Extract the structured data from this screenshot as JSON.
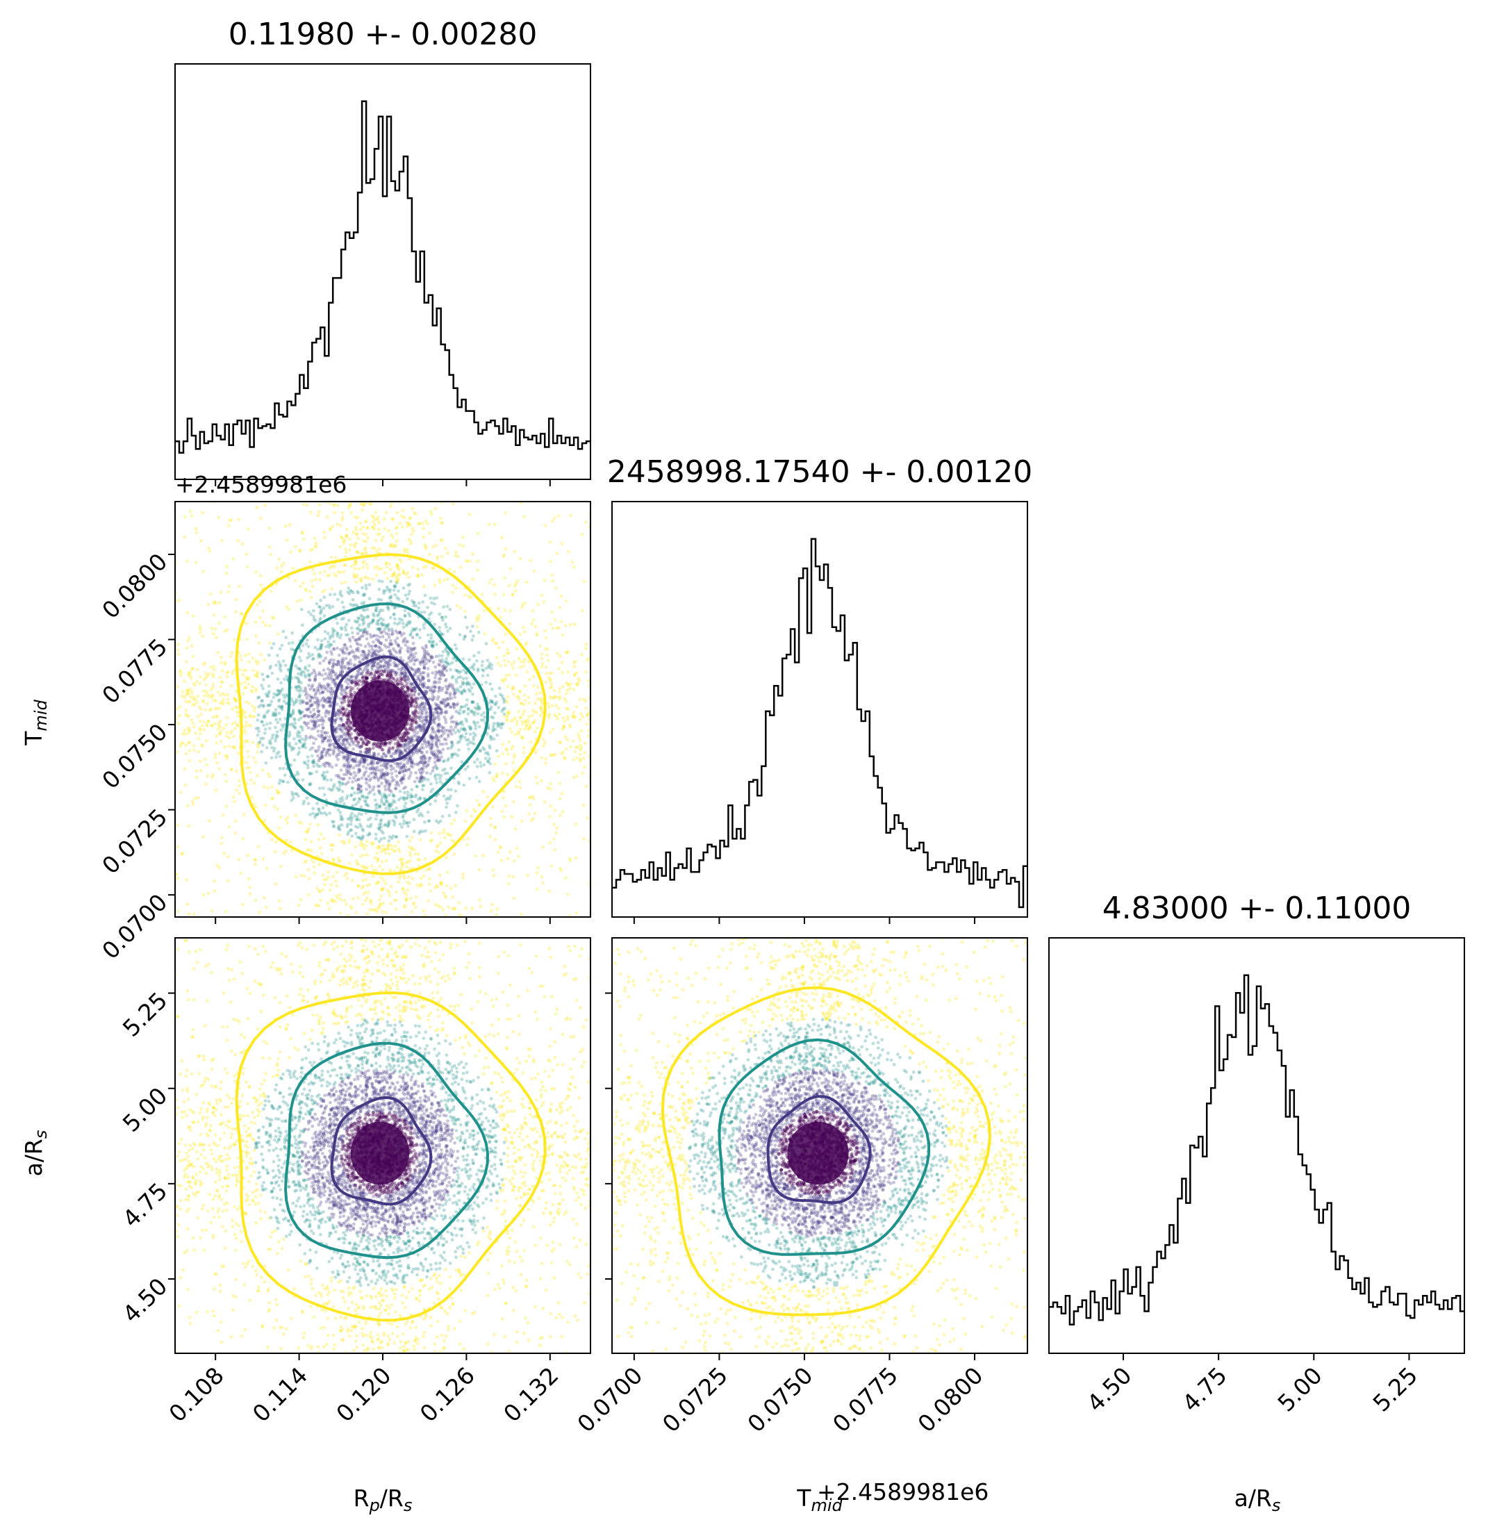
{
  "chart_data": {
    "type": "corner",
    "parameters": [
      {
        "key": "rp",
        "label": "Rp/Rs",
        "range": [
          0.1051,
          0.1349
        ],
        "median": 0.1198,
        "sigma": 0.0028,
        "title": "0.11980 +- 0.00280",
        "ticks": [
          "0.108",
          "0.114",
          "0.120",
          "0.126",
          "0.132"
        ],
        "tick_values": [
          0.108,
          0.114,
          0.12,
          0.126,
          0.132
        ]
      },
      {
        "key": "tmid",
        "label": "Tmid",
        "range": [
          0.06935,
          0.08155
        ],
        "median": 0.0754,
        "sigma": 0.0012,
        "title": "2458998.17540 +- 0.00120",
        "offset_text": "+2.4589981e6",
        "ticks": [
          "0.0700",
          "0.0725",
          "0.0750",
          "0.0775",
          "0.0800"
        ],
        "tick_values": [
          0.07,
          0.0725,
          0.075,
          0.0775,
          0.08
        ]
      },
      {
        "key": "ars",
        "label": "a/Rs",
        "range": [
          4.305,
          5.395
        ],
        "median": 4.83,
        "sigma": 0.11,
        "title": "4.83000 +- 0.11000",
        "ticks": [
          "4.50",
          "4.75",
          "5.00",
          "5.25"
        ],
        "tick_values": [
          4.5,
          4.75,
          5.0,
          5.25
        ]
      }
    ],
    "histograms": [
      {
        "param": "rp",
        "peak_bin_center": 0.1198,
        "shape": "sharp peak on broad flat background"
      },
      {
        "param": "tmid",
        "peak_bin_center": 0.0754,
        "shape": "sharp peak on broad flat background"
      },
      {
        "param": "ars",
        "peak_bin_center": 4.81,
        "shape": "sharp peak on broad flat background"
      }
    ],
    "contour_levels": [
      "inner",
      "middle",
      "outer"
    ],
    "colors": {
      "inner": "#443983",
      "middle": "#21918c",
      "outer": "#fde725",
      "core": "#440154",
      "hist": "#000000"
    },
    "axis_labels": {
      "rp": {
        "main": "R",
        "sub1": "p",
        "mid": "/R",
        "sub2": "s"
      },
      "tmid": {
        "main": "T",
        "sub1": "mid"
      },
      "ars": {
        "main": "a/R",
        "sub1": "s"
      }
    }
  }
}
